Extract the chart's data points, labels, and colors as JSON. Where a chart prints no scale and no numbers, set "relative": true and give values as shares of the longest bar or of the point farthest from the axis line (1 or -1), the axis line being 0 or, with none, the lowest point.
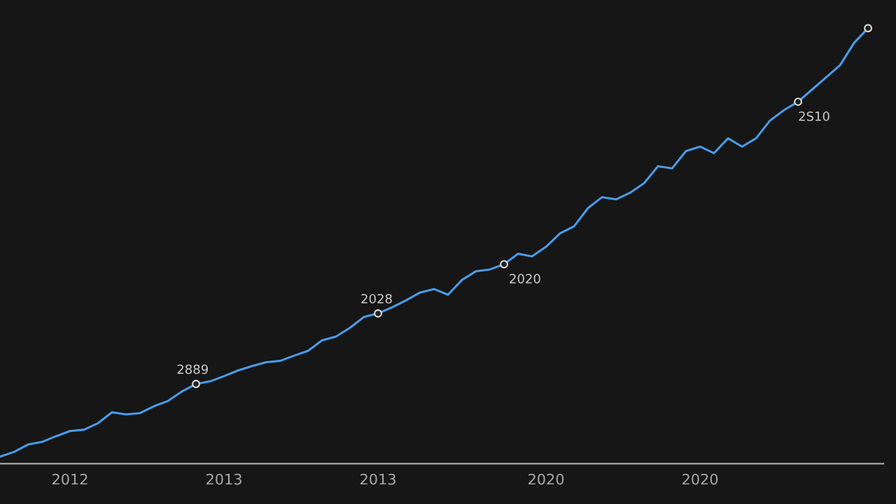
{
  "chart_data": {
    "type": "line",
    "relative": true,
    "categories": [
      null,
      null,
      null,
      null,
      null,
      "2012",
      null,
      null,
      null,
      null,
      null,
      null,
      null,
      null,
      null,
      null,
      "2013",
      null,
      null,
      null,
      null,
      null,
      null,
      null,
      null,
      null,
      null,
      "2013",
      null,
      null,
      null,
      null,
      null,
      null,
      null,
      null,
      null,
      null,
      null,
      "2020",
      null,
      null,
      null,
      null,
      null,
      null,
      null,
      null,
      null,
      null,
      "2020",
      null,
      null,
      null,
      null,
      null,
      null,
      null,
      null,
      null,
      null,
      null,
      null
    ],
    "series": [
      {
        "color": "#4a9be8",
        "values": [
          0.016,
          0.027,
          0.044,
          0.05,
          0.063,
          0.075,
          0.078,
          0.093,
          0.118,
          0.113,
          0.116,
          0.132,
          0.144,
          0.166,
          0.183,
          0.189,
          0.201,
          0.214,
          0.224,
          0.233,
          0.236,
          0.248,
          0.259,
          0.283,
          0.292,
          0.312,
          0.337,
          0.345,
          0.359,
          0.375,
          0.393,
          0.401,
          0.388,
          0.422,
          0.442,
          0.446,
          0.458,
          0.482,
          0.476,
          0.498,
          0.529,
          0.545,
          0.587,
          0.612,
          0.607,
          0.622,
          0.644,
          0.683,
          0.678,
          0.718,
          0.728,
          0.713,
          0.747,
          0.728,
          0.747,
          0.788,
          0.812,
          0.831,
          0.859,
          0.887,
          0.915,
          0.966,
          1.0
        ]
      },
      {
        "type": "scatter",
        "color": "#dddddd",
        "marker": "circle",
        "values": [
          null,
          null,
          null,
          null,
          null,
          null,
          null,
          null,
          null,
          null,
          null,
          null,
          null,
          null,
          0.183,
          null,
          null,
          null,
          null,
          null,
          null,
          null,
          null,
          null,
          null,
          null,
          null,
          0.345,
          null,
          null,
          null,
          null,
          null,
          null,
          null,
          null,
          0.458,
          null,
          null,
          null,
          null,
          null,
          null,
          null,
          null,
          null,
          null,
          null,
          null,
          null,
          null,
          null,
          null,
          null,
          null,
          null,
          null,
          0.831,
          null,
          null,
          null,
          null,
          1.0
        ]
      }
    ],
    "annotations": [
      "2889",
      "2028",
      "2020",
      "2S10"
    ]
  }
}
